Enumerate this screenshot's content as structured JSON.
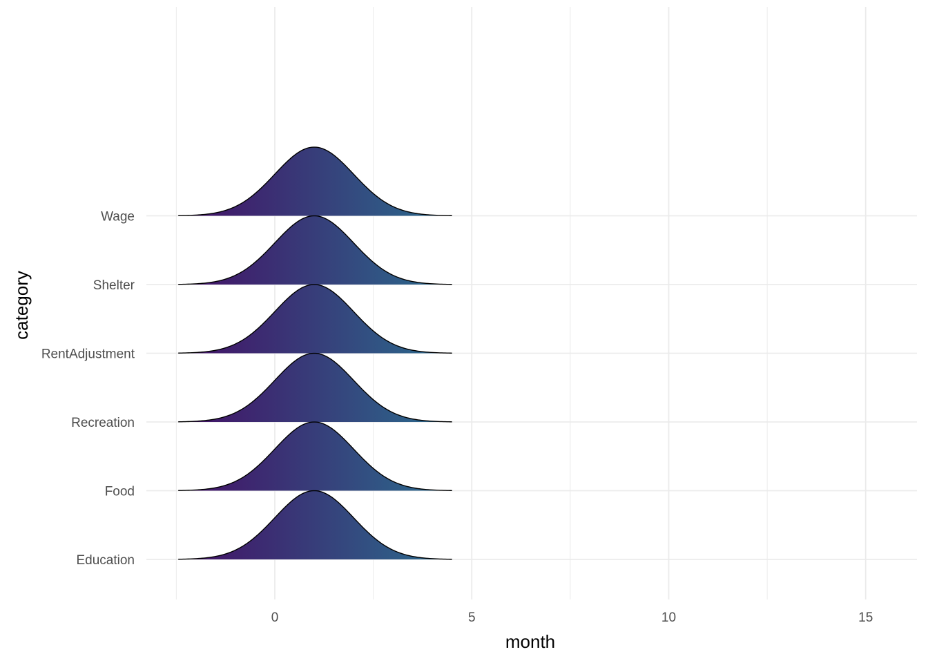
{
  "chart_data": {
    "type": "ridgeline",
    "xlabel": "month",
    "ylabel": "category",
    "xlim": [
      -2.5,
      16.3
    ],
    "x_ticks": [
      0,
      5,
      10,
      15
    ],
    "x_tick_labels": [
      "0",
      "5",
      "10",
      "15"
    ],
    "categories": [
      "Education",
      "Food",
      "Recreation",
      "RentAdjustment",
      "Shelter",
      "Wage"
    ],
    "density_x_range": [
      -2.45,
      4.5
    ],
    "series": [
      {
        "category": "Education",
        "mean": 1.0,
        "sd": 1.0
      },
      {
        "category": "Food",
        "mean": 1.0,
        "sd": 1.0
      },
      {
        "category": "Recreation",
        "mean": 1.0,
        "sd": 1.0
      },
      {
        "category": "RentAdjustment",
        "mean": 1.0,
        "sd": 1.0
      },
      {
        "category": "Shelter",
        "mean": 1.0,
        "sd": 1.0
      },
      {
        "category": "Wage",
        "mean": 1.0,
        "sd": 1.0
      }
    ],
    "fill_gradient": [
      "#440e65",
      "#2a6d8e"
    ],
    "outline_color": "#000000",
    "grid": true,
    "legend": "none"
  }
}
